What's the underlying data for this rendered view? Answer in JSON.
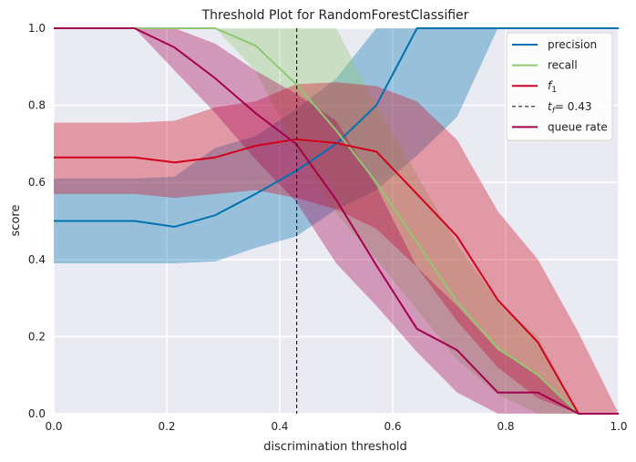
{
  "chart_data": {
    "type": "line",
    "title": "Threshold Plot for RandomForestClassifier",
    "xlabel": "discrimination threshold",
    "ylabel": "score",
    "xlim": [
      0,
      1
    ],
    "ylim": [
      0,
      1
    ],
    "xticks": [
      "0.0",
      "0.2",
      "0.4",
      "0.6",
      "0.8",
      "1.0"
    ],
    "yticks": [
      "0.0",
      "0.2",
      "0.4",
      "0.6",
      "0.8",
      "1.0"
    ],
    "grid": true,
    "legend_position": "top-right",
    "threshold_line": {
      "label_prefix": "t",
      "label_subscript": "f",
      "label_value": "= 0.43",
      "x": 0.43,
      "color": "#222222"
    },
    "series": [
      {
        "name": "precision",
        "color": "#0072b2",
        "x": [
          0,
          0.143,
          0.214,
          0.286,
          0.357,
          0.429,
          0.5,
          0.571,
          0.643,
          0.714,
          0.786,
          0.857,
          0.929,
          1.0
        ],
        "y": [
          0.5,
          0.5,
          0.485,
          0.515,
          0.57,
          0.63,
          0.7,
          0.8,
          1.0,
          1.0,
          1.0,
          1.0,
          1.0,
          1.0
        ],
        "lower": [
          0.39,
          0.39,
          0.39,
          0.395,
          0.43,
          0.46,
          0.53,
          0.58,
          0.67,
          0.77,
          1.0,
          1.0,
          1.0,
          1.0
        ],
        "upper": [
          0.61,
          0.61,
          0.615,
          0.69,
          0.72,
          0.79,
          0.87,
          1.0,
          1.0,
          1.0,
          1.0,
          1.0,
          1.0,
          1.0
        ]
      },
      {
        "name": "recall",
        "color": "#8fc870",
        "x": [
          0,
          0.143,
          0.214,
          0.286,
          0.357,
          0.429,
          0.5,
          0.571,
          0.643,
          0.714,
          0.786,
          0.857,
          0.929,
          1.0
        ],
        "y": [
          1.0,
          1.0,
          1.0,
          1.0,
          0.955,
          0.855,
          0.735,
          0.6,
          0.445,
          0.29,
          0.17,
          0.1,
          0.0,
          0.0
        ],
        "lower": [
          1.0,
          1.0,
          1.0,
          1.0,
          0.89,
          0.69,
          0.52,
          0.4,
          0.27,
          0.14,
          0.05,
          0.0,
          0.0,
          0.0
        ],
        "upper": [
          1.0,
          1.0,
          1.0,
          1.0,
          1.0,
          1.0,
          1.0,
          0.8,
          0.62,
          0.44,
          0.29,
          0.2,
          0.0,
          0.0
        ]
      },
      {
        "name": "f1",
        "legend_base": "f",
        "legend_sub": "1",
        "color": "#d0021b",
        "x": [
          0,
          0.143,
          0.214,
          0.286,
          0.357,
          0.429,
          0.5,
          0.571,
          0.643,
          0.714,
          0.786,
          0.857,
          0.929,
          1.0
        ],
        "y": [
          0.665,
          0.665,
          0.652,
          0.665,
          0.695,
          0.712,
          0.702,
          0.68,
          0.57,
          0.46,
          0.295,
          0.185,
          0.0,
          0.0
        ],
        "lower": [
          0.57,
          0.57,
          0.56,
          0.57,
          0.58,
          0.56,
          0.53,
          0.48,
          0.38,
          0.24,
          0.12,
          0.04,
          0.0,
          0.0
        ],
        "upper": [
          0.755,
          0.755,
          0.76,
          0.795,
          0.81,
          0.855,
          0.86,
          0.85,
          0.81,
          0.71,
          0.525,
          0.4,
          0.21,
          0.0
        ]
      },
      {
        "name": "queue rate",
        "color": "#a5004f",
        "x": [
          0,
          0.143,
          0.214,
          0.286,
          0.357,
          0.429,
          0.5,
          0.571,
          0.643,
          0.714,
          0.786,
          0.857,
          0.929,
          1.0
        ],
        "y": [
          1.0,
          1.0,
          0.95,
          0.87,
          0.78,
          0.7,
          0.555,
          0.385,
          0.22,
          0.165,
          0.055,
          0.055,
          0.0,
          0.0
        ],
        "lower": [
          1.0,
          1.0,
          0.89,
          0.78,
          0.66,
          0.55,
          0.39,
          0.28,
          0.16,
          0.055,
          0.0,
          0.0,
          0.0,
          0.0
        ],
        "upper": [
          1.0,
          1.0,
          1.0,
          0.96,
          0.89,
          0.83,
          0.76,
          0.59,
          0.38,
          0.28,
          0.165,
          0.1,
          0.0,
          0.0
        ]
      }
    ]
  }
}
